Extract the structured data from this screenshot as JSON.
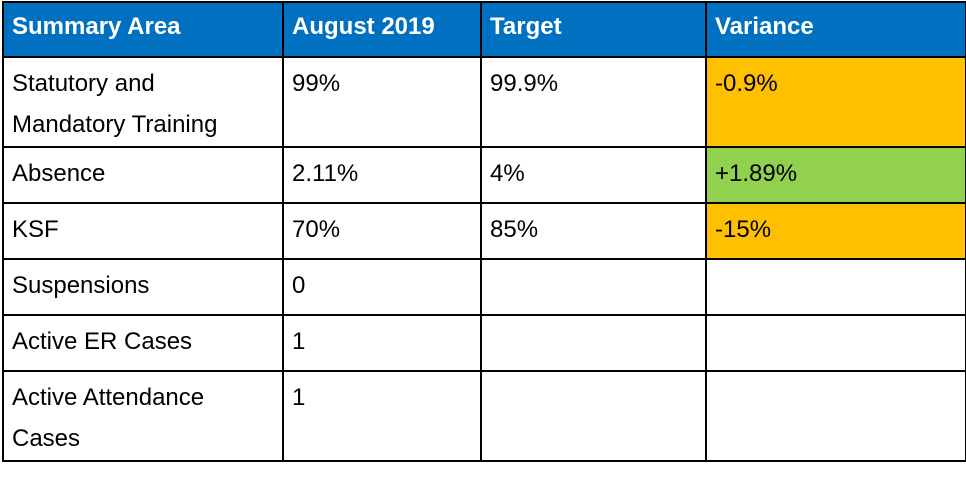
{
  "table": {
    "headers": [
      "Summary Area",
      "August 2019",
      "Target",
      "Variance"
    ],
    "rows": [
      {
        "area": "Statutory and Mandatory Training",
        "august_2019": "99%",
        "target": "99.9%",
        "variance": "-0.9%",
        "variance_status": "amber"
      },
      {
        "area": "Absence",
        "august_2019": "2.11%",
        "target": "4%",
        "variance": "+1.89%",
        "variance_status": "green"
      },
      {
        "area": "KSF",
        "august_2019": "70%",
        "target": "85%",
        "variance": "-15%",
        "variance_status": "amber"
      },
      {
        "area": "Suspensions",
        "august_2019": "0",
        "target": "",
        "variance": "",
        "variance_status": "none"
      },
      {
        "area": "Active ER Cases",
        "august_2019": "1",
        "target": "",
        "variance": "",
        "variance_status": "none"
      },
      {
        "area": "Active Attendance Cases",
        "august_2019": "1",
        "target": "",
        "variance": "",
        "variance_status": "none"
      }
    ]
  },
  "colors": {
    "header_bg": "#0070c0",
    "header_text": "#ffffff",
    "amber": "#ffc000",
    "green": "#92d050",
    "border": "#000000"
  }
}
